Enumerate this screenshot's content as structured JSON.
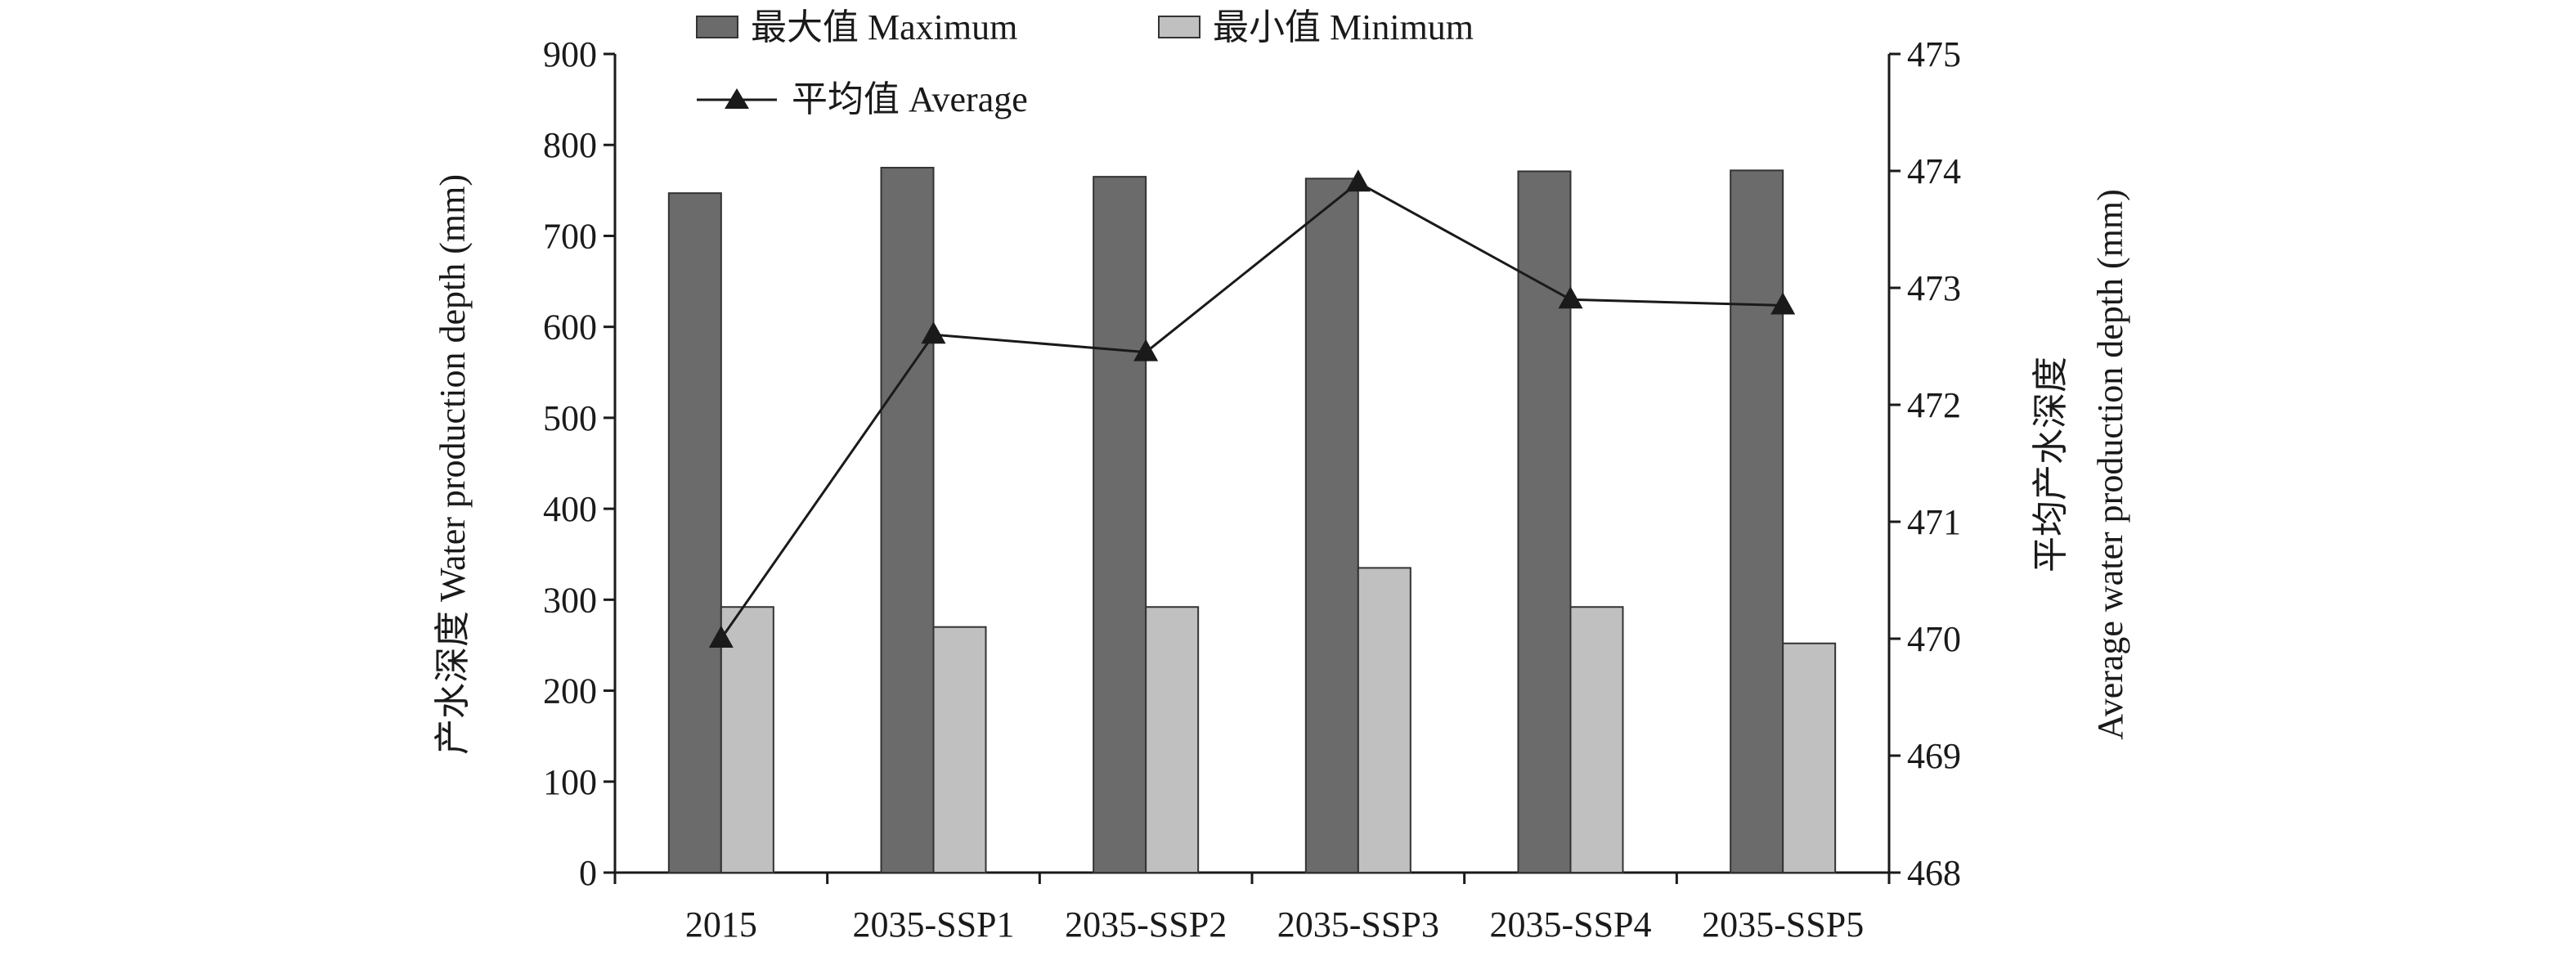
{
  "chart_data": {
    "type": "bar",
    "categories": [
      "2015",
      "2035-SSP1",
      "2035-SSP2",
      "2035-SSP3",
      "2035-SSP4",
      "2035-SSP5"
    ],
    "series": [
      {
        "name": "最大值 Maximum",
        "axis": "left",
        "type": "bar",
        "color": "#6b6b6b",
        "values": [
          747,
          775,
          765,
          763,
          771,
          772
        ]
      },
      {
        "name": "最小值 Minimum",
        "axis": "left",
        "type": "bar",
        "color": "#c0c0c0",
        "values": [
          292,
          270,
          292,
          335,
          292,
          252
        ]
      },
      {
        "name": "平均值 Average",
        "axis": "right",
        "type": "line",
        "marker": "triangle",
        "color": "#1a1a1a",
        "values": [
          470.0,
          472.6,
          472.45,
          473.9,
          472.9,
          472.85
        ]
      }
    ],
    "ylabel_left": "产水深度 Water production depth (mm)",
    "ylabel_right_line1": "平均产水深度",
    "ylabel_right_line2": "Average water production depth (mm)",
    "ylim_left": [
      0,
      900
    ],
    "yticks_left": [
      "0",
      "100",
      "200",
      "300",
      "400",
      "500",
      "600",
      "700",
      "800",
      "900"
    ],
    "ylim_right": [
      468,
      475
    ],
    "yticks_right": [
      "468",
      "469",
      "470",
      "471",
      "472",
      "473",
      "474",
      "475"
    ],
    "grid": false,
    "legend_position": "top"
  }
}
